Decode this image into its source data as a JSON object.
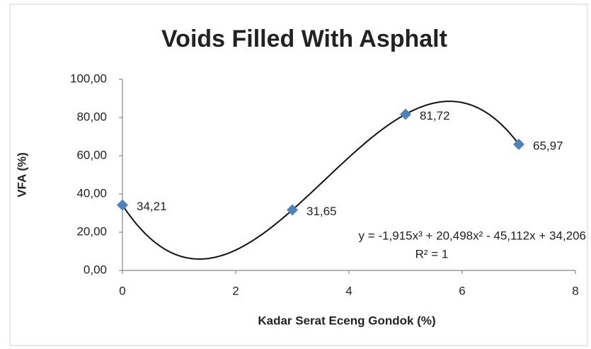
{
  "chart_data": {
    "type": "scatter",
    "title": "Voids Filled With Asphalt",
    "x_label": "Kadar Serat Eceng Gondok (%)",
    "y_label": "VFA (%)",
    "x": [
      0,
      3,
      5,
      7
    ],
    "series": [
      {
        "color": "#4f81bd",
        "values": [
          34.21,
          31.65,
          81.72,
          65.97
        ],
        "value_labels": [
          "34,21",
          "31,65",
          "81,72",
          "65,97"
        ]
      }
    ],
    "xlim": [
      0,
      8
    ],
    "xticks": [
      0,
      2,
      4,
      6,
      8
    ],
    "ylim": [
      0,
      100
    ],
    "yticks": [
      {
        "value": 0,
        "label": "0,00"
      },
      {
        "value": 20,
        "label": "20,00"
      },
      {
        "value": 40,
        "label": "40,00"
      },
      {
        "value": 60,
        "label": "60,00"
      },
      {
        "value": 80,
        "label": "80,00"
      },
      {
        "value": 100,
        "label": "100,00"
      }
    ],
    "grid": false,
    "annotations": [
      "y = -1,915x³ + 20,498x² - 45,112x + 34,206",
      "R² = 1"
    ]
  }
}
